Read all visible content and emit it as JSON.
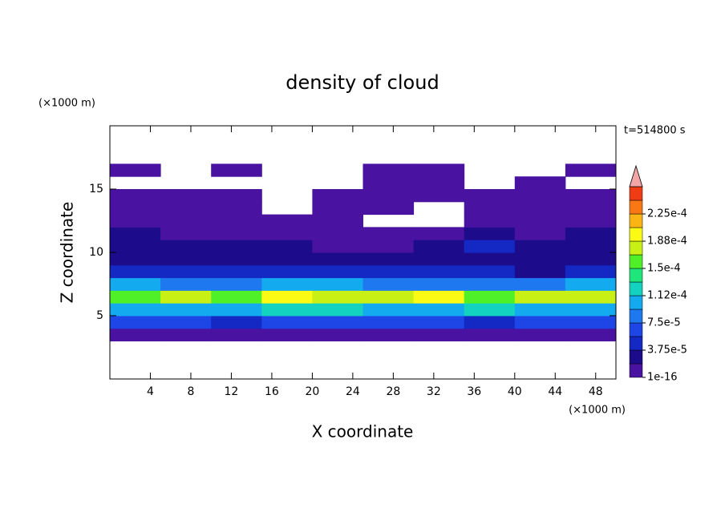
{
  "chart_data": {
    "type": "contour",
    "title": "density of cloud",
    "x_label": "X coordinate",
    "y_label": "Z coordinate",
    "x_unit": "(×1000 m)",
    "y_unit": "(×1000 m)",
    "annotation": "t=514800 s",
    "xlim": [
      0,
      50
    ],
    "ylim": [
      0,
      20
    ],
    "xticks": [
      4,
      8,
      12,
      16,
      20,
      24,
      28,
      32,
      36,
      40,
      44,
      48
    ],
    "yticks": [
      5,
      10,
      15
    ],
    "x_edges": [
      0,
      5,
      10,
      15,
      20,
      25,
      30,
      35,
      40,
      45,
      50
    ],
    "z_edges": [
      0,
      1,
      2,
      3,
      4,
      5,
      6,
      7,
      8,
      9,
      10,
      11,
      12,
      13,
      14,
      15,
      16,
      17,
      18,
      19,
      20
    ],
    "z": [
      [
        null,
        null,
        null,
        null,
        null,
        null,
        null,
        null,
        null,
        null
      ],
      [
        null,
        null,
        null,
        null,
        null,
        null,
        null,
        null,
        null,
        null
      ],
      [
        null,
        null,
        null,
        null,
        null,
        null,
        null,
        null,
        null,
        null
      ],
      [
        1.5e-05,
        1.5e-05,
        1.5e-05,
        1.5e-05,
        1.5e-05,
        1.5e-05,
        1.5e-05,
        1.5e-05,
        1.5e-05,
        1.5e-05
      ],
      [
        6e-05,
        6e-05,
        5e-05,
        6e-05,
        6e-05,
        6e-05,
        6e-05,
        5e-05,
        6e-05,
        6e-05
      ],
      [
        0.00011,
        0.0001,
        0.00011,
        0.00012,
        0.00012,
        0.00011,
        0.00011,
        0.00012,
        0.0001,
        0.00011
      ],
      [
        0.00016,
        0.00017,
        0.00015,
        0.00019,
        0.00018,
        0.00017,
        0.00019,
        0.00016,
        0.00017,
        0.00018
      ],
      [
        0.0001,
        9e-05,
        8e-05,
        0.00011,
        0.0001,
        9e-05,
        8e-05,
        9e-05,
        8e-05,
        0.0001
      ],
      [
        4.5e-05,
        4e-05,
        4e-05,
        4e-05,
        4.5e-05,
        4e-05,
        4e-05,
        4.5e-05,
        3.5e-05,
        4e-05
      ],
      [
        3e-05,
        3e-05,
        3e-05,
        2.5e-05,
        2.5e-05,
        2e-05,
        3e-05,
        3e-05,
        2.5e-05,
        3e-05
      ],
      [
        2.5e-05,
        2.5e-05,
        2e-05,
        2e-05,
        1.5e-05,
        1.5e-05,
        3e-05,
        4.5e-05,
        2e-05,
        2.5e-05
      ],
      [
        2e-05,
        1.5e-05,
        1.5e-05,
        1e-05,
        1e-05,
        1e-05,
        1e-05,
        3e-05,
        1.5e-05,
        2e-05
      ],
      [
        1e-05,
        1e-05,
        1e-05,
        5e-06,
        5e-06,
        null,
        null,
        1e-05,
        1e-05,
        1e-05
      ],
      [
        5e-06,
        5e-06,
        5e-06,
        null,
        5e-06,
        5e-06,
        null,
        5e-06,
        5e-06,
        5e-06
      ],
      [
        5e-06,
        5e-06,
        5e-06,
        null,
        5e-06,
        5e-06,
        5e-06,
        5e-06,
        5e-06,
        5e-06
      ],
      [
        null,
        null,
        null,
        null,
        null,
        5e-06,
        5e-06,
        null,
        5e-06,
        null
      ],
      [
        5e-06,
        null,
        5e-06,
        null,
        null,
        5e-06,
        5e-06,
        null,
        null,
        5e-06
      ],
      [
        null,
        null,
        null,
        null,
        null,
        null,
        null,
        null,
        null,
        null
      ],
      [
        null,
        null,
        null,
        null,
        null,
        null,
        null,
        null,
        null,
        null
      ],
      [
        null,
        null,
        null,
        null,
        null,
        null,
        null,
        null,
        null,
        null
      ]
    ],
    "levels": [
      1e-16,
      1.875e-05,
      3.75e-05,
      5.625e-05,
      7.5e-05,
      9.375e-05,
      0.0001125,
      0.00013125,
      0.00015,
      0.00016875,
      0.0001875,
      0.00020625,
      0.000225,
      0.00024375
    ],
    "colors": [
      "#4a12a0",
      "#1c0c8c",
      "#1428c4",
      "#1e46e6",
      "#1e78f0",
      "#14aaf0",
      "#14d2c0",
      "#1ee67a",
      "#50f028",
      "#c8f014",
      "#fafa14",
      "#fab414",
      "#fa7814",
      "#f03c14"
    ],
    "extend_color": "#f4a6a6",
    "cbar_ticks": [
      {
        "value": 1e-16,
        "label": "1e-16"
      },
      {
        "value": 3.75e-05,
        "label": "3.75e-5"
      },
      {
        "value": 7.5e-05,
        "label": "7.5e-5"
      },
      {
        "value": 0.0001125,
        "label": "1.12e-4"
      },
      {
        "value": 0.00015,
        "label": "1.5e-4"
      },
      {
        "value": 0.0001875,
        "label": "1.88e-4"
      },
      {
        "value": 0.000225,
        "label": "2.25e-4"
      }
    ]
  }
}
